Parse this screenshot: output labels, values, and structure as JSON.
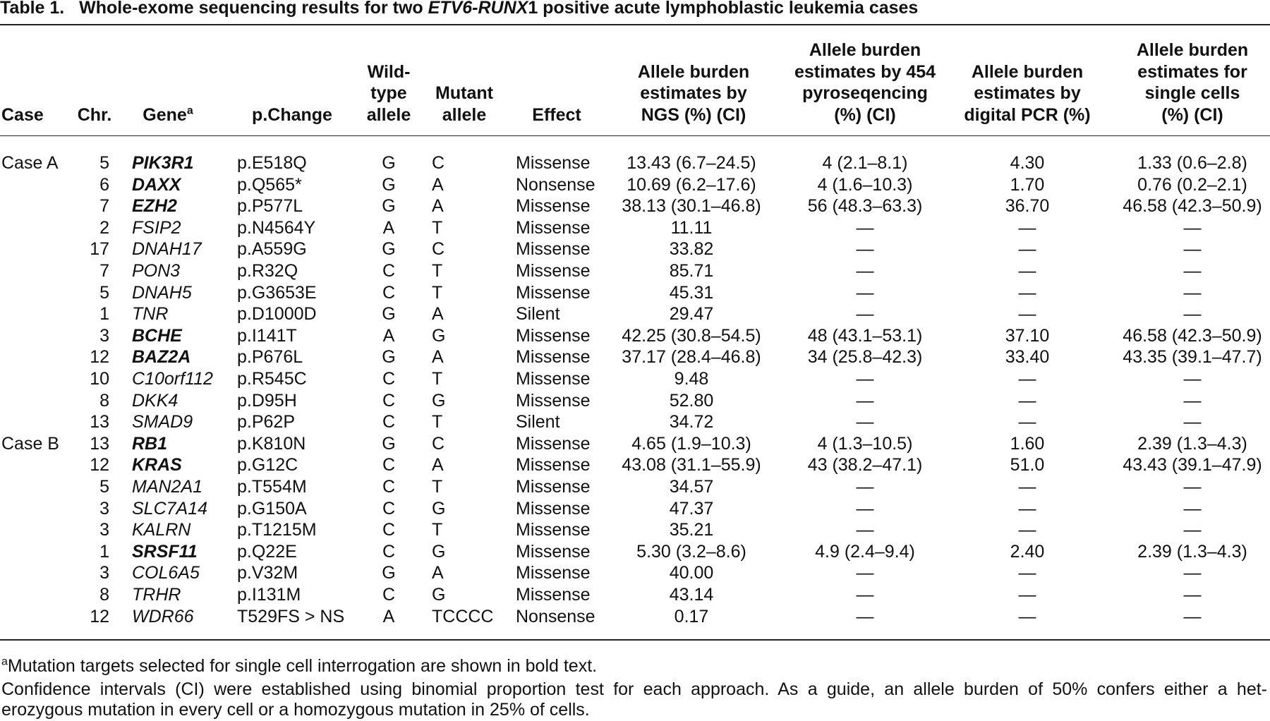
{
  "title": {
    "label": "Table 1.",
    "parts": [
      "Whole-exome sequencing results for two ",
      "ETV6-RUNX",
      "1 positive acute lymphoblastic leukemia cases"
    ]
  },
  "table": {
    "columns": [
      {
        "lines": [
          "Case"
        ]
      },
      {
        "lines": [
          "Chr."
        ]
      },
      {
        "lines": [
          "Gene"
        ],
        "note_mark": "a"
      },
      {
        "lines": [
          "p.Change"
        ]
      },
      {
        "lines": [
          "Wild-",
          "type",
          "allele"
        ]
      },
      {
        "lines": [
          "Mutant",
          "allele"
        ]
      },
      {
        "lines": [
          "Effect"
        ]
      },
      {
        "lines": [
          "Allele burden",
          "estimates by",
          "NGS (%) (CI)"
        ]
      },
      {
        "lines": [
          "Allele burden",
          "estimates by 454",
          "pyroseqencing",
          "(%) (CI)"
        ]
      },
      {
        "lines": [
          "Allele burden",
          "estimates by",
          "digital PCR (%)"
        ]
      },
      {
        "lines": [
          "Allele burden",
          "estimates for",
          "single cells",
          "(%) (CI)"
        ]
      }
    ],
    "cases": [
      {
        "name": "Case A",
        "rows": [
          {
            "bold": true,
            "cells": [
              "5",
              "PIK3R1",
              "p.E518Q",
              "G",
              "C",
              "Missense",
              "13.43 (6.7–24.5)",
              "4 (2.1–8.1)",
              "4.30",
              "1.33 (0.6–2.8)"
            ]
          },
          {
            "bold": true,
            "cells": [
              "6",
              "DAXX",
              "p.Q565*",
              "G",
              "A",
              "Nonsense",
              "10.69 (6.2–17.6)",
              "4 (1.6–10.3)",
              "1.70",
              "0.76 (0.2–2.1)"
            ]
          },
          {
            "bold": true,
            "cells": [
              "7",
              "EZH2",
              "p.P577L",
              "G",
              "A",
              "Missense",
              "38.13 (30.1–46.8)",
              "56 (48.3–63.3)",
              "36.70",
              "46.58 (42.3–50.9)"
            ]
          },
          {
            "bold": false,
            "cells": [
              "2",
              "FSIP2",
              "p.N4564Y",
              "A",
              "T",
              "Missense",
              "11.11",
              "—",
              "—",
              "—"
            ]
          },
          {
            "bold": false,
            "cells": [
              "17",
              "DNAH17",
              "p.A559G",
              "G",
              "C",
              "Missense",
              "33.82",
              "—",
              "—",
              "—"
            ]
          },
          {
            "bold": false,
            "cells": [
              "7",
              "PON3",
              "p.R32Q",
              "C",
              "T",
              "Missense",
              "85.71",
              "—",
              "—",
              "—"
            ]
          },
          {
            "bold": false,
            "cells": [
              "5",
              "DNAH5",
              "p.G3653E",
              "C",
              "T",
              "Missense",
              "45.31",
              "—",
              "—",
              "—"
            ]
          },
          {
            "bold": false,
            "cells": [
              "1",
              "TNR",
              "p.D1000D",
              "G",
              "A",
              "Silent",
              "29.47",
              "—",
              "—",
              "—"
            ]
          },
          {
            "bold": true,
            "cells": [
              "3",
              "BCHE",
              "p.I141T",
              "A",
              "G",
              "Missense",
              "42.25 (30.8–54.5)",
              "48 (43.1–53.1)",
              "37.10",
              "46.58 (42.3–50.9)"
            ]
          },
          {
            "bold": true,
            "cells": [
              "12",
              "BAZ2A",
              "p.P676L",
              "G",
              "A",
              "Missense",
              "37.17 (28.4–46.8)",
              "34 (25.8–42.3)",
              "33.40",
              "43.35 (39.1–47.7)"
            ]
          },
          {
            "bold": false,
            "cells": [
              "10",
              "C10orf112",
              "p.R545C",
              "C",
              "T",
              "Missense",
              "9.48",
              "—",
              "—",
              "—"
            ]
          },
          {
            "bold": false,
            "cells": [
              "8",
              "DKK4",
              "p.D95H",
              "C",
              "G",
              "Missense",
              "52.80",
              "—",
              "—",
              "—"
            ]
          },
          {
            "bold": false,
            "cells": [
              "13",
              "SMAD9",
              "p.P62P",
              "C",
              "T",
              "Silent",
              "34.72",
              "—",
              "—",
              "—"
            ]
          }
        ]
      },
      {
        "name": "Case B",
        "rows": [
          {
            "bold": true,
            "cells": [
              "13",
              "RB1",
              "p.K810N",
              "G",
              "C",
              "Missense",
              "4.65 (1.9–10.3)",
              "4 (1.3–10.5)",
              "1.60",
              "2.39 (1.3–4.3)"
            ]
          },
          {
            "bold": true,
            "cells": [
              "12",
              "KRAS",
              "p.G12C",
              "C",
              "A",
              "Missense",
              "43.08 (31.1–55.9)",
              "43 (38.2–47.1)",
              "51.0",
              "43.43 (39.1–47.9)"
            ]
          },
          {
            "bold": false,
            "cells": [
              "5",
              "MAN2A1",
              "p.T554M",
              "C",
              "T",
              "Missense",
              "34.57",
              "—",
              "—",
              "—"
            ]
          },
          {
            "bold": false,
            "cells": [
              "3",
              "SLC7A14",
              "p.G150A",
              "C",
              "G",
              "Missense",
              "47.37",
              "—",
              "—",
              "—"
            ]
          },
          {
            "bold": false,
            "cells": [
              "3",
              "KALRN",
              "p.T1215M",
              "C",
              "T",
              "Missense",
              "35.21",
              "—",
              "—",
              "—"
            ]
          },
          {
            "bold": true,
            "cells": [
              "1",
              "SRSF11",
              "p.Q22E",
              "C",
              "G",
              "Missense",
              "5.30 (3.2–8.6)",
              "4.9 (2.4–9.4)",
              "2.40",
              "2.39 (1.3–4.3)"
            ]
          },
          {
            "bold": false,
            "cells": [
              "3",
              "COL6A5",
              "p.V32M",
              "G",
              "A",
              "Missense",
              "40.00",
              "—",
              "—",
              "—"
            ]
          },
          {
            "bold": false,
            "cells": [
              "8",
              "TRHR",
              "p.I131M",
              "C",
              "G",
              "Missense",
              "43.14",
              "—",
              "—",
              "—"
            ]
          },
          {
            "bold": false,
            "cells": [
              "12",
              "WDR66",
              "T529FS > NS",
              "A",
              "TCCCC",
              "Nonsense",
              "0.17",
              "—",
              "—",
              "—"
            ]
          }
        ]
      }
    ]
  },
  "footnotes": [
    {
      "mark": "a",
      "lines": [
        "Mutation targets selected for single cell interrogation are shown in bold text."
      ]
    },
    {
      "lines": [
        "Confidence intervals (CI) were established using binomial proportion test for each approach. As a guide, an allele burden of 50% confers either a het-",
        "erozygous mutation in every cell or a homozygous mutation in 25% of cells."
      ]
    }
  ]
}
